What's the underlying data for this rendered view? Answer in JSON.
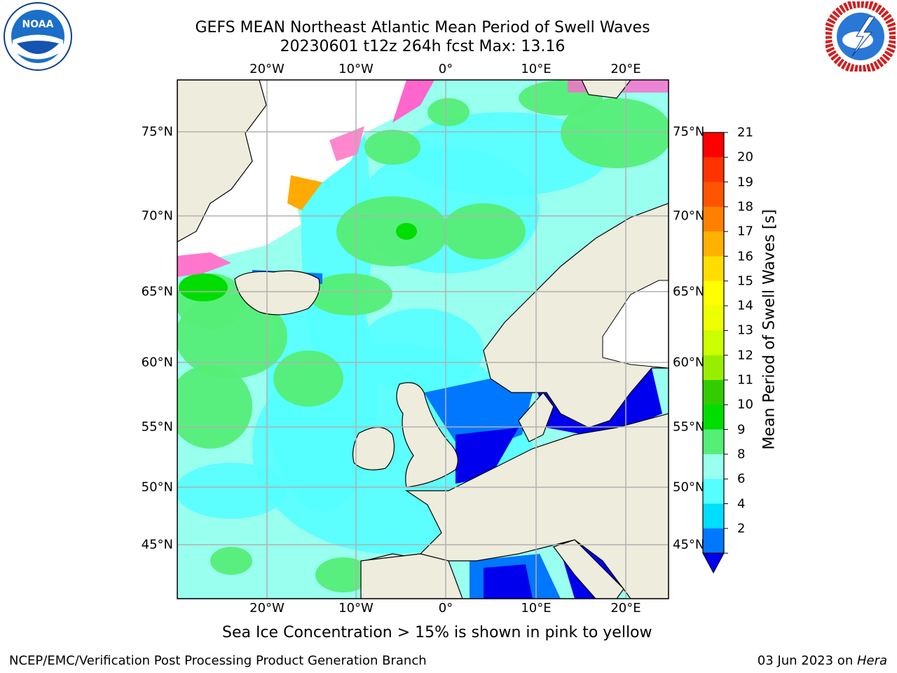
{
  "header": {
    "title_line1": "GEFS MEAN Northeast Atlantic Mean Period of Swell Waves",
    "title_line2": "20230601 t12z 264h fcst   Max: 13.16"
  },
  "logos": {
    "left": "noaa-logo",
    "left_text": "NOAA",
    "right": "nws-logo"
  },
  "map": {
    "lon_ticks": [
      "20°W",
      "10°W",
      "0°",
      "10°E",
      "20°E"
    ],
    "lat_ticks": [
      "75°N",
      "70°N",
      "65°N",
      "60°N",
      "55°N",
      "50°N",
      "45°N"
    ],
    "colors": {
      "land": "#eeecdc",
      "ice_free": "#ffffff",
      "grid": "#b0b0b0"
    }
  },
  "colorbar": {
    "label": "Mean Period of Swell Waves [s]",
    "ticks": [
      "21",
      "20",
      "19",
      "18",
      "17",
      "16",
      "15",
      "14",
      "13",
      "12",
      "11",
      "10",
      "9",
      "8",
      "6",
      "4",
      "2"
    ],
    "colors": [
      "#ff0000",
      "#ff3300",
      "#ff5500",
      "#ff8000",
      "#ffb000",
      "#ffdd00",
      "#ffff00",
      "#eeff00",
      "#ccff00",
      "#99ee00",
      "#33cc00",
      "#00dd00",
      "#55ee77",
      "#99ffee",
      "#55ffff",
      "#00ddff",
      "#0077ff"
    ],
    "under_color": "#0000ee"
  },
  "footer": {
    "note": "Sea Ice Concentration > 15% is shown in pink to yellow",
    "credit": "NCEP/EMC/Verification Post Processing Product Generation Branch",
    "date": "03 Jun 2023 on ",
    "host": "Hera"
  }
}
